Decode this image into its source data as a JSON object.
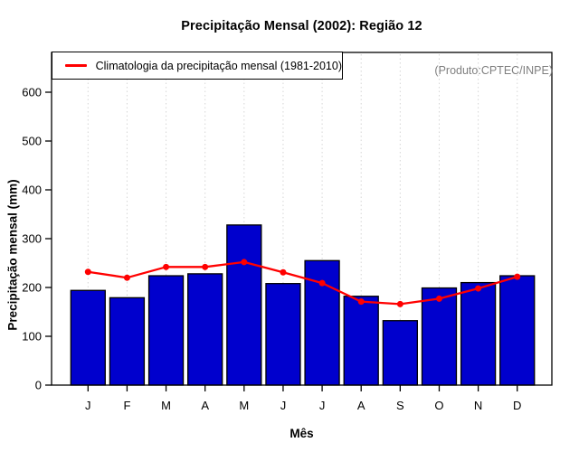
{
  "chart_data": {
    "type": "bar",
    "title": "Precipitação Mensal (2002): Região 12",
    "xlabel": "Mês",
    "ylabel": "Precipitação mensal (mm)",
    "annotation": "(Produto:CPTEC/INPE)",
    "categories": [
      "J",
      "F",
      "M",
      "A",
      "M",
      "J",
      "J",
      "A",
      "S",
      "O",
      "N",
      "D"
    ],
    "series": [
      {
        "name": "Precipitação mensal (2002)",
        "type": "bar",
        "color": "#0000CD",
        "values": [
          194,
          179,
          224,
          228,
          328,
          208,
          255,
          182,
          132,
          199,
          210,
          224
        ]
      },
      {
        "name": "Climatologia da precipitação mensal (1981-2010)",
        "type": "line",
        "color": "#FF0000",
        "values": [
          232,
          220,
          242,
          242,
          252,
          231,
          209,
          171,
          166,
          177,
          198,
          222
        ]
      }
    ],
    "ylim": [
      0,
      600
    ],
    "yticks": [
      0,
      100,
      200,
      300,
      400,
      500,
      600
    ],
    "grid": "vertical-dotted",
    "legend_position": "top-left"
  },
  "colors": {
    "bar_fill": "#0000CD",
    "bar_border": "#000000",
    "line": "#FF0000",
    "grid": "#D6D6D6",
    "axis": "#000000",
    "annotation": "#7F7F7F"
  }
}
